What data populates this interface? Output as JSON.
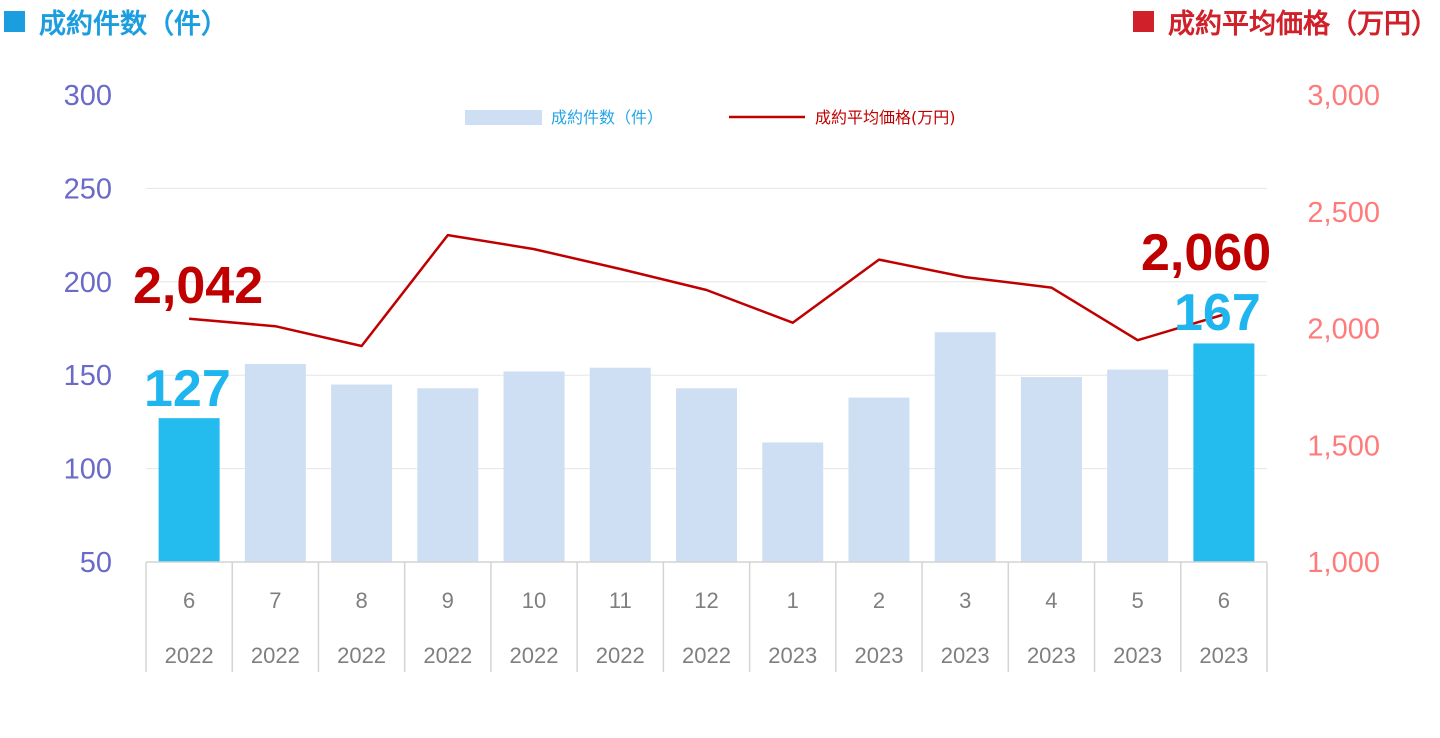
{
  "header": {
    "left_title": "成約件数（件）",
    "right_title": "成約平均価格（万円）"
  },
  "colors": {
    "bar_normal": "#cfdff3",
    "bar_highlight": "#24bbef",
    "line": "#c00000",
    "left_axis": "#6a6ac8",
    "right_axis": "#ff7b7b"
  },
  "legend": {
    "bars": "成約件数（件）",
    "line": "成約平均価格(万円)"
  },
  "chart_data": {
    "type": "bar",
    "categories": [
      "6",
      "7",
      "8",
      "9",
      "10",
      "11",
      "12",
      "1",
      "2",
      "3",
      "4",
      "5",
      "6"
    ],
    "years": [
      "2022",
      "2022",
      "2022",
      "2022",
      "2022",
      "2022",
      "2022",
      "2023",
      "2023",
      "2023",
      "2023",
      "2023",
      "2023"
    ],
    "series": [
      {
        "name": "成約件数（件）",
        "type": "bar",
        "axis": "left",
        "values": [
          127,
          156,
          145,
          143,
          152,
          154,
          143,
          114,
          138,
          173,
          149,
          153,
          167
        ],
        "highlight": [
          true,
          false,
          false,
          false,
          false,
          false,
          false,
          false,
          false,
          false,
          false,
          false,
          true
        ]
      },
      {
        "name": "成約平均価格(万円)",
        "type": "line",
        "axis": "right",
        "values": [
          2042,
          2010,
          1925,
          2400,
          2340,
          2255,
          2165,
          2025,
          2295,
          2220,
          2175,
          1950,
          2060
        ]
      }
    ],
    "left_axis": {
      "ylim": [
        50,
        300
      ],
      "ticks": [
        "50",
        "100",
        "150",
        "200",
        "250",
        "300"
      ]
    },
    "right_axis": {
      "ylim": [
        1000,
        3000
      ],
      "ticks": [
        "1,000",
        "1,500",
        "2,000",
        "2,500",
        "3,000"
      ]
    },
    "annotations": {
      "line_first": "2,042",
      "line_last": "2,060",
      "bar_first": "127",
      "bar_last": "167"
    },
    "grid": true,
    "legend_position": "top-center"
  }
}
